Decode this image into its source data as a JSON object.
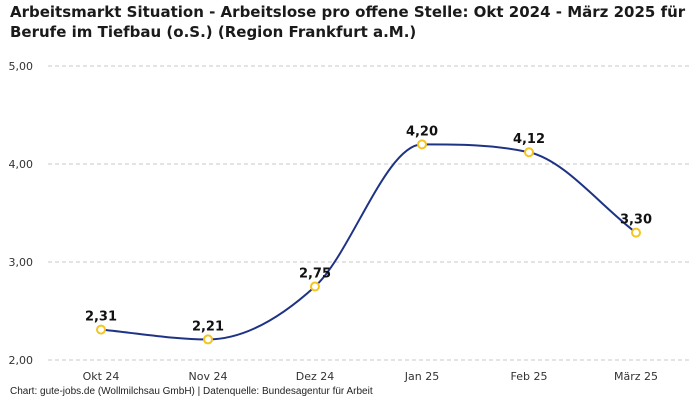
{
  "chart_data": {
    "type": "line",
    "title": "Arbeitsmarkt Situation - Arbeitslose pro offene Stelle: Okt 2024 - März 2025 für Berufe im Tiefbau (o.S.) (Region Frankfurt a.M.)",
    "categories": [
      "Okt 24",
      "Nov 24",
      "Dez 24",
      "Jan 25",
      "Feb 25",
      "März 25"
    ],
    "values": [
      2.31,
      2.21,
      2.75,
      4.2,
      4.12,
      3.3
    ],
    "data_labels": [
      "2,31",
      "2,21",
      "2,75",
      "4,20",
      "4,12",
      "3,30"
    ],
    "yticks": [
      2.0,
      3.0,
      4.0,
      5.0
    ],
    "ytick_labels": [
      "2,00",
      "3,00",
      "4,00",
      "5,00"
    ],
    "ylim": [
      2.0,
      5.0
    ],
    "xlabel": "",
    "ylabel": "",
    "grid": "horizontal dashed",
    "smooth": true,
    "legend": "none",
    "colors": {
      "line": "#1f3385",
      "marker_edge": "#f2c51f",
      "marker_fill": "#ffffff",
      "grid": "#c8c8c8"
    }
  },
  "source": "Chart: gute-jobs.de (Wollmilchsau GmbH) | Datenquelle: Bundesagentur für Arbeit"
}
